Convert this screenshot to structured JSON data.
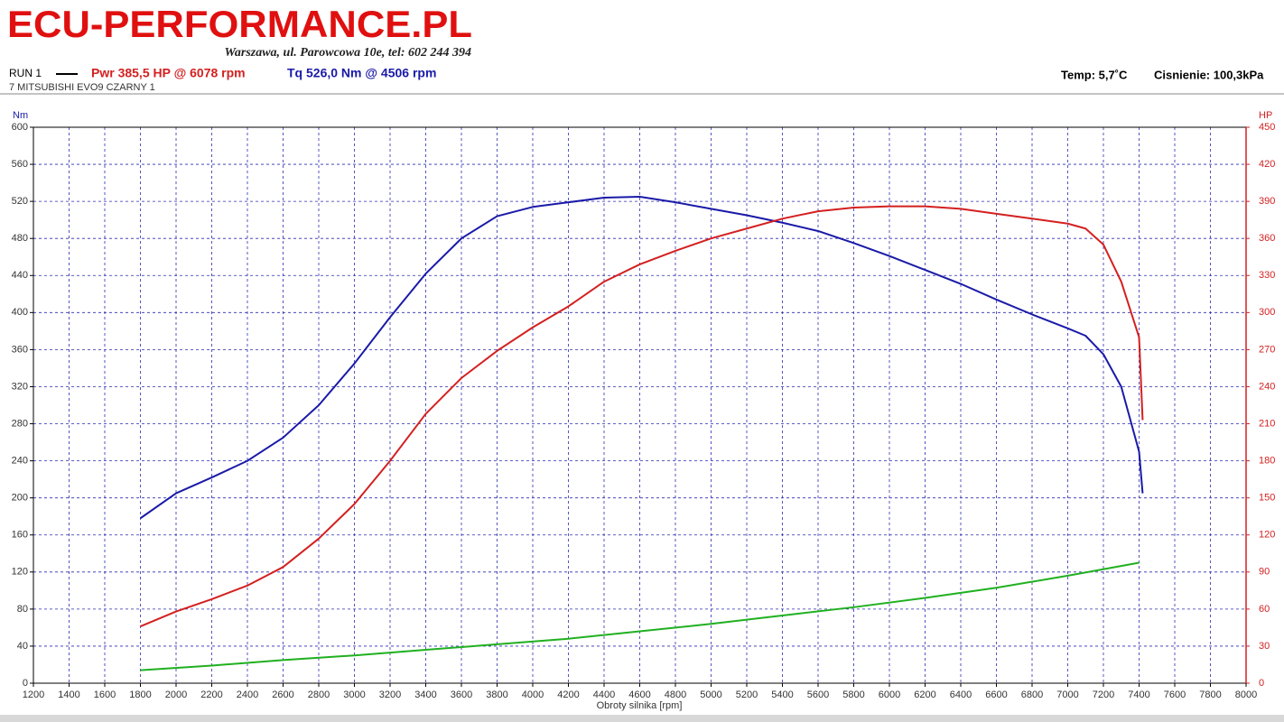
{
  "header": {
    "brand": "ECU-PERFORMANCE.PL",
    "address": "Warszawa, ul. Parowcowa 10e, tel: 602 244 394",
    "run": "RUN 1",
    "power_label": "Pwr  385,5 HP @ 6078 rpm",
    "torque_label": "Tq 526,0 Nm @ 4506 rpm",
    "vehicle": "7 MITSUBISHI EVO9 CZARNY 1",
    "temperature": "Temp: 5,7˚C",
    "pressure": "Cisnienie: 100,3kPa"
  },
  "chart_data": {
    "type": "line",
    "y_label": "Nm",
    "y2_label": "HP",
    "x_label": "Obroty silnika [rpm]",
    "xlim": [
      1200,
      8000
    ],
    "xticks": [
      1200,
      1400,
      1600,
      1800,
      2000,
      2200,
      2400,
      2600,
      2800,
      3000,
      3200,
      3400,
      3600,
      3800,
      4000,
      4200,
      4400,
      4600,
      4800,
      5000,
      5200,
      5400,
      5600,
      5800,
      6000,
      6200,
      6400,
      6600,
      6800,
      7000,
      7200,
      7400,
      7600,
      7800,
      8000
    ],
    "ylim": [
      0,
      600
    ],
    "yticks": [
      0,
      40,
      80,
      120,
      160,
      200,
      240,
      280,
      320,
      360,
      400,
      440,
      480,
      520,
      560,
      600
    ],
    "y2lim": [
      0,
      450
    ],
    "y2ticks": [
      0,
      30,
      60,
      90,
      120,
      150,
      180,
      210,
      240,
      270,
      300,
      330,
      360,
      390,
      420,
      450
    ],
    "grid": true,
    "series": [
      {
        "color": "#1a1aa8",
        "axis": "y",
        "x": [
          1800,
          2000,
          2200,
          2400,
          2600,
          2800,
          3000,
          3200,
          3400,
          3600,
          3800,
          4000,
          4200,
          4400,
          4600,
          4800,
          5000,
          5200,
          5400,
          5600,
          5800,
          6000,
          6200,
          6400,
          6600,
          6800,
          7000,
          7100,
          7200,
          7300,
          7400,
          7420
        ],
        "values": [
          178,
          205,
          222,
          240,
          265,
          300,
          345,
          395,
          442,
          480,
          504,
          514,
          519,
          524,
          525,
          519,
          512,
          505,
          497,
          488,
          475,
          461,
          446,
          431,
          414,
          398,
          383,
          375,
          355,
          320,
          250,
          205
        ]
      },
      {
        "color": "#d42020",
        "axis": "y2",
        "x": [
          1800,
          2000,
          2200,
          2400,
          2600,
          2800,
          3000,
          3200,
          3400,
          3600,
          3800,
          4000,
          4200,
          4400,
          4600,
          4800,
          5000,
          5200,
          5400,
          5600,
          5800,
          6000,
          6200,
          6400,
          6600,
          6800,
          7000,
          7100,
          7200,
          7300,
          7400,
          7420
        ],
        "values": [
          46,
          58,
          68,
          79,
          94,
          117,
          145,
          180,
          218,
          247,
          269,
          288,
          305,
          325,
          339,
          350,
          360,
          368,
          376,
          382,
          385,
          386,
          386,
          384,
          380,
          376,
          372,
          368,
          355,
          325,
          280,
          213
        ]
      },
      {
        "color": "#20b020",
        "axis": "y",
        "x": [
          1800,
          2200,
          2600,
          3000,
          3400,
          3800,
          4200,
          4600,
          5000,
          5400,
          5800,
          6200,
          6600,
          7000,
          7400
        ],
        "values": [
          14,
          19,
          25,
          30,
          36,
          42,
          48,
          56,
          64,
          73,
          82,
          92,
          103,
          116,
          130
        ]
      }
    ]
  }
}
